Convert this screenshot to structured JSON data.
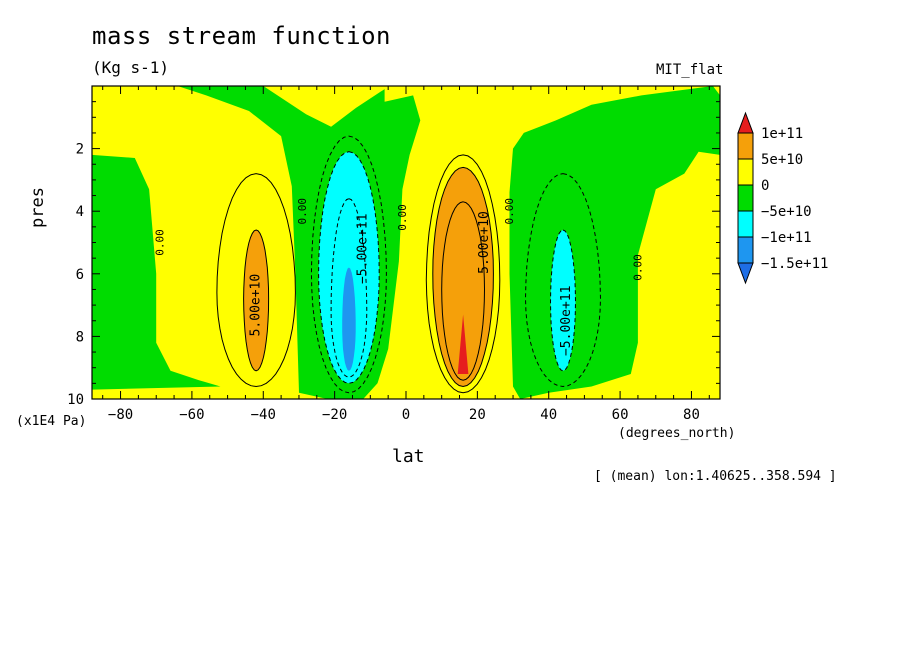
{
  "title": "mass stream function",
  "units": "(Kg s-1)",
  "run_name": "MIT_flat",
  "subtitle_note": "[ (mean) lon:1.40625..358.594 ]",
  "colors": {
    "level_below_-1.5e11": "#1e6ee6",
    "level_-1.5e11_to_-1e11": "#1e96f0",
    "level_-1e11_to_-5e10": "#00ffff",
    "level_-5e10_to_0": "#00dc00",
    "level_0_to_5e10": "#ffff00",
    "level_5e10_to_1e11": "#f5a00a",
    "level_above_1e11": "#e61e1e"
  },
  "chart_data": {
    "type": "contour",
    "variable": "mass stream function",
    "units": "Kg s-1",
    "xlabel": "lat",
    "x_units": "(degrees_north)",
    "ylabel": "pres",
    "y_units": "(x1E4 Pa)",
    "xlim": [
      -88,
      88
    ],
    "ylim": [
      10,
      0
    ],
    "x_ticks": [
      -80,
      -60,
      -40,
      -20,
      0,
      20,
      40,
      60,
      80
    ],
    "x_tick_labels": [
      "−80",
      "−60",
      "−40",
      "−20",
      "0",
      "20",
      "40",
      "60",
      "80"
    ],
    "y_ticks": [
      2,
      4,
      6,
      8,
      10
    ],
    "y_tick_labels": [
      "2",
      "4",
      "6",
      "8",
      "10"
    ],
    "colorbar_levels": [
      100000000000.0,
      50000000000.0,
      0,
      -50000000000.0,
      -100000000000.0,
      -150000000000.0
    ],
    "colorbar_labels": [
      "1e+11",
      "5e+10",
      "0",
      "−5e+10",
      "−1e+11",
      "−1.5e+11"
    ],
    "contour_labels": [
      {
        "text": "5.00e+10",
        "lat": -42,
        "pres": 7.0
      },
      {
        "text": "−5.00e+11",
        "lat": -12,
        "pres": 5.2
      },
      {
        "text": "5.00e+10",
        "lat": 22,
        "pres": 5.0
      },
      {
        "text": "−5.00e+11",
        "lat": 45,
        "pres": 7.5
      },
      {
        "text": "0.00",
        "lat": -69,
        "pres": 5.0
      },
      {
        "text": "0.00",
        "lat": -29,
        "pres": 4.0
      },
      {
        "text": "0.00",
        "lat": -1,
        "pres": 4.2
      },
      {
        "text": "0.00",
        "lat": 29,
        "pres": 4.0
      },
      {
        "text": "0.00",
        "lat": 65,
        "pres": 5.8
      }
    ],
    "cells": [
      {
        "lat": -42,
        "pres": 6.5,
        "peak": 82000000000.0,
        "sign": "positive"
      },
      {
        "lat": -15,
        "pres": 6.5,
        "peak": -160000000000.0,
        "sign": "negative"
      },
      {
        "lat": 16,
        "pres": 6.5,
        "peak": 120000000000.0,
        "sign": "positive"
      },
      {
        "lat": 44,
        "pres": 6.8,
        "peak": -110000000000.0,
        "sign": "negative"
      }
    ],
    "grid": false,
    "legend_position": "right"
  }
}
